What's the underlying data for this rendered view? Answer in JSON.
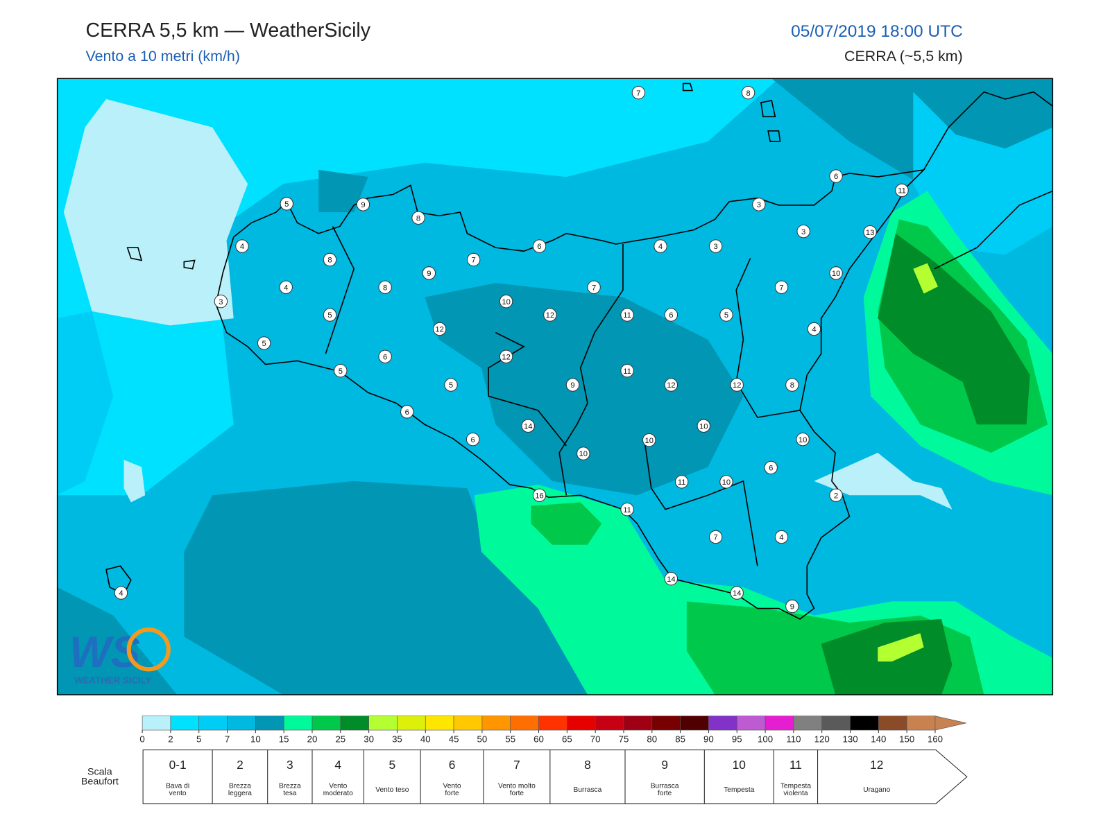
{
  "header": {
    "title": "CERRA 5,5 km — WeatherSicily",
    "subtitle": "Vento a 10 metri (km/h)",
    "datetime": "05/07/2019 18:00 UTC",
    "model": "CERRA (~5,5 km)"
  },
  "map": {
    "station_values": [
      7,
      8,
      6,
      11,
      5,
      9,
      8,
      3,
      3,
      13,
      4,
      6,
      4,
      3,
      8,
      7,
      9,
      10,
      4,
      8,
      7,
      7,
      3,
      10,
      5,
      12,
      11,
      6,
      5,
      12,
      4,
      5,
      6,
      12,
      5,
      11,
      5,
      9,
      12,
      12,
      8,
      6,
      14,
      10,
      6,
      10,
      10,
      10,
      6,
      11,
      10,
      16,
      2,
      11,
      7,
      4,
      14,
      14,
      9,
      4
    ]
  },
  "logo": {
    "mark": "WS",
    "name": "WEATHER SICILY"
  },
  "colorbar": {
    "ticks": [
      0,
      2,
      5,
      7,
      10,
      15,
      20,
      25,
      30,
      35,
      40,
      45,
      50,
      55,
      60,
      65,
      70,
      75,
      80,
      85,
      90,
      95,
      100,
      110,
      120,
      130,
      140,
      150,
      160
    ],
    "colors": [
      "#b9f0fa",
      "#00e1ff",
      "#00cdf5",
      "#00b9e1",
      "#0096b4",
      "#00fa9b",
      "#00c84b",
      "#008c28",
      "#b4ff32",
      "#dcf00a",
      "#ffe600",
      "#ffc800",
      "#ff9600",
      "#ff6e00",
      "#ff3200",
      "#e60000",
      "#c80014",
      "#a00014",
      "#780000",
      "#500000",
      "#8232c8",
      "#be5ad2",
      "#e61ed2",
      "#808080",
      "#5a5a5a",
      "#000000",
      "#8c4b28",
      "#c88250"
    ]
  },
  "beaufort": {
    "title": [
      "Scala",
      "Beaufort"
    ],
    "levels": [
      {
        "force": "0-1",
        "description": [
          "Bava di",
          "vento"
        ]
      },
      {
        "force": "2",
        "description": [
          "Brezza",
          "leggera"
        ]
      },
      {
        "force": "3",
        "description": [
          "Brezza",
          "tesa"
        ]
      },
      {
        "force": "4",
        "description": [
          "Vento",
          "moderato"
        ]
      },
      {
        "force": "5",
        "description": [
          "Vento teso"
        ]
      },
      {
        "force": "6",
        "description": [
          "Vento",
          "forte"
        ]
      },
      {
        "force": "7",
        "description": [
          "Vento molto",
          "forte"
        ]
      },
      {
        "force": "8",
        "description": [
          "Burrasca"
        ]
      },
      {
        "force": "9",
        "description": [
          "Burrasca",
          "forte"
        ]
      },
      {
        "force": "10",
        "description": [
          "Tempesta"
        ]
      },
      {
        "force": "11",
        "description": [
          "Tempesta",
          "violenta"
        ]
      },
      {
        "force": "12",
        "description": [
          "Uragano"
        ]
      }
    ]
  }
}
